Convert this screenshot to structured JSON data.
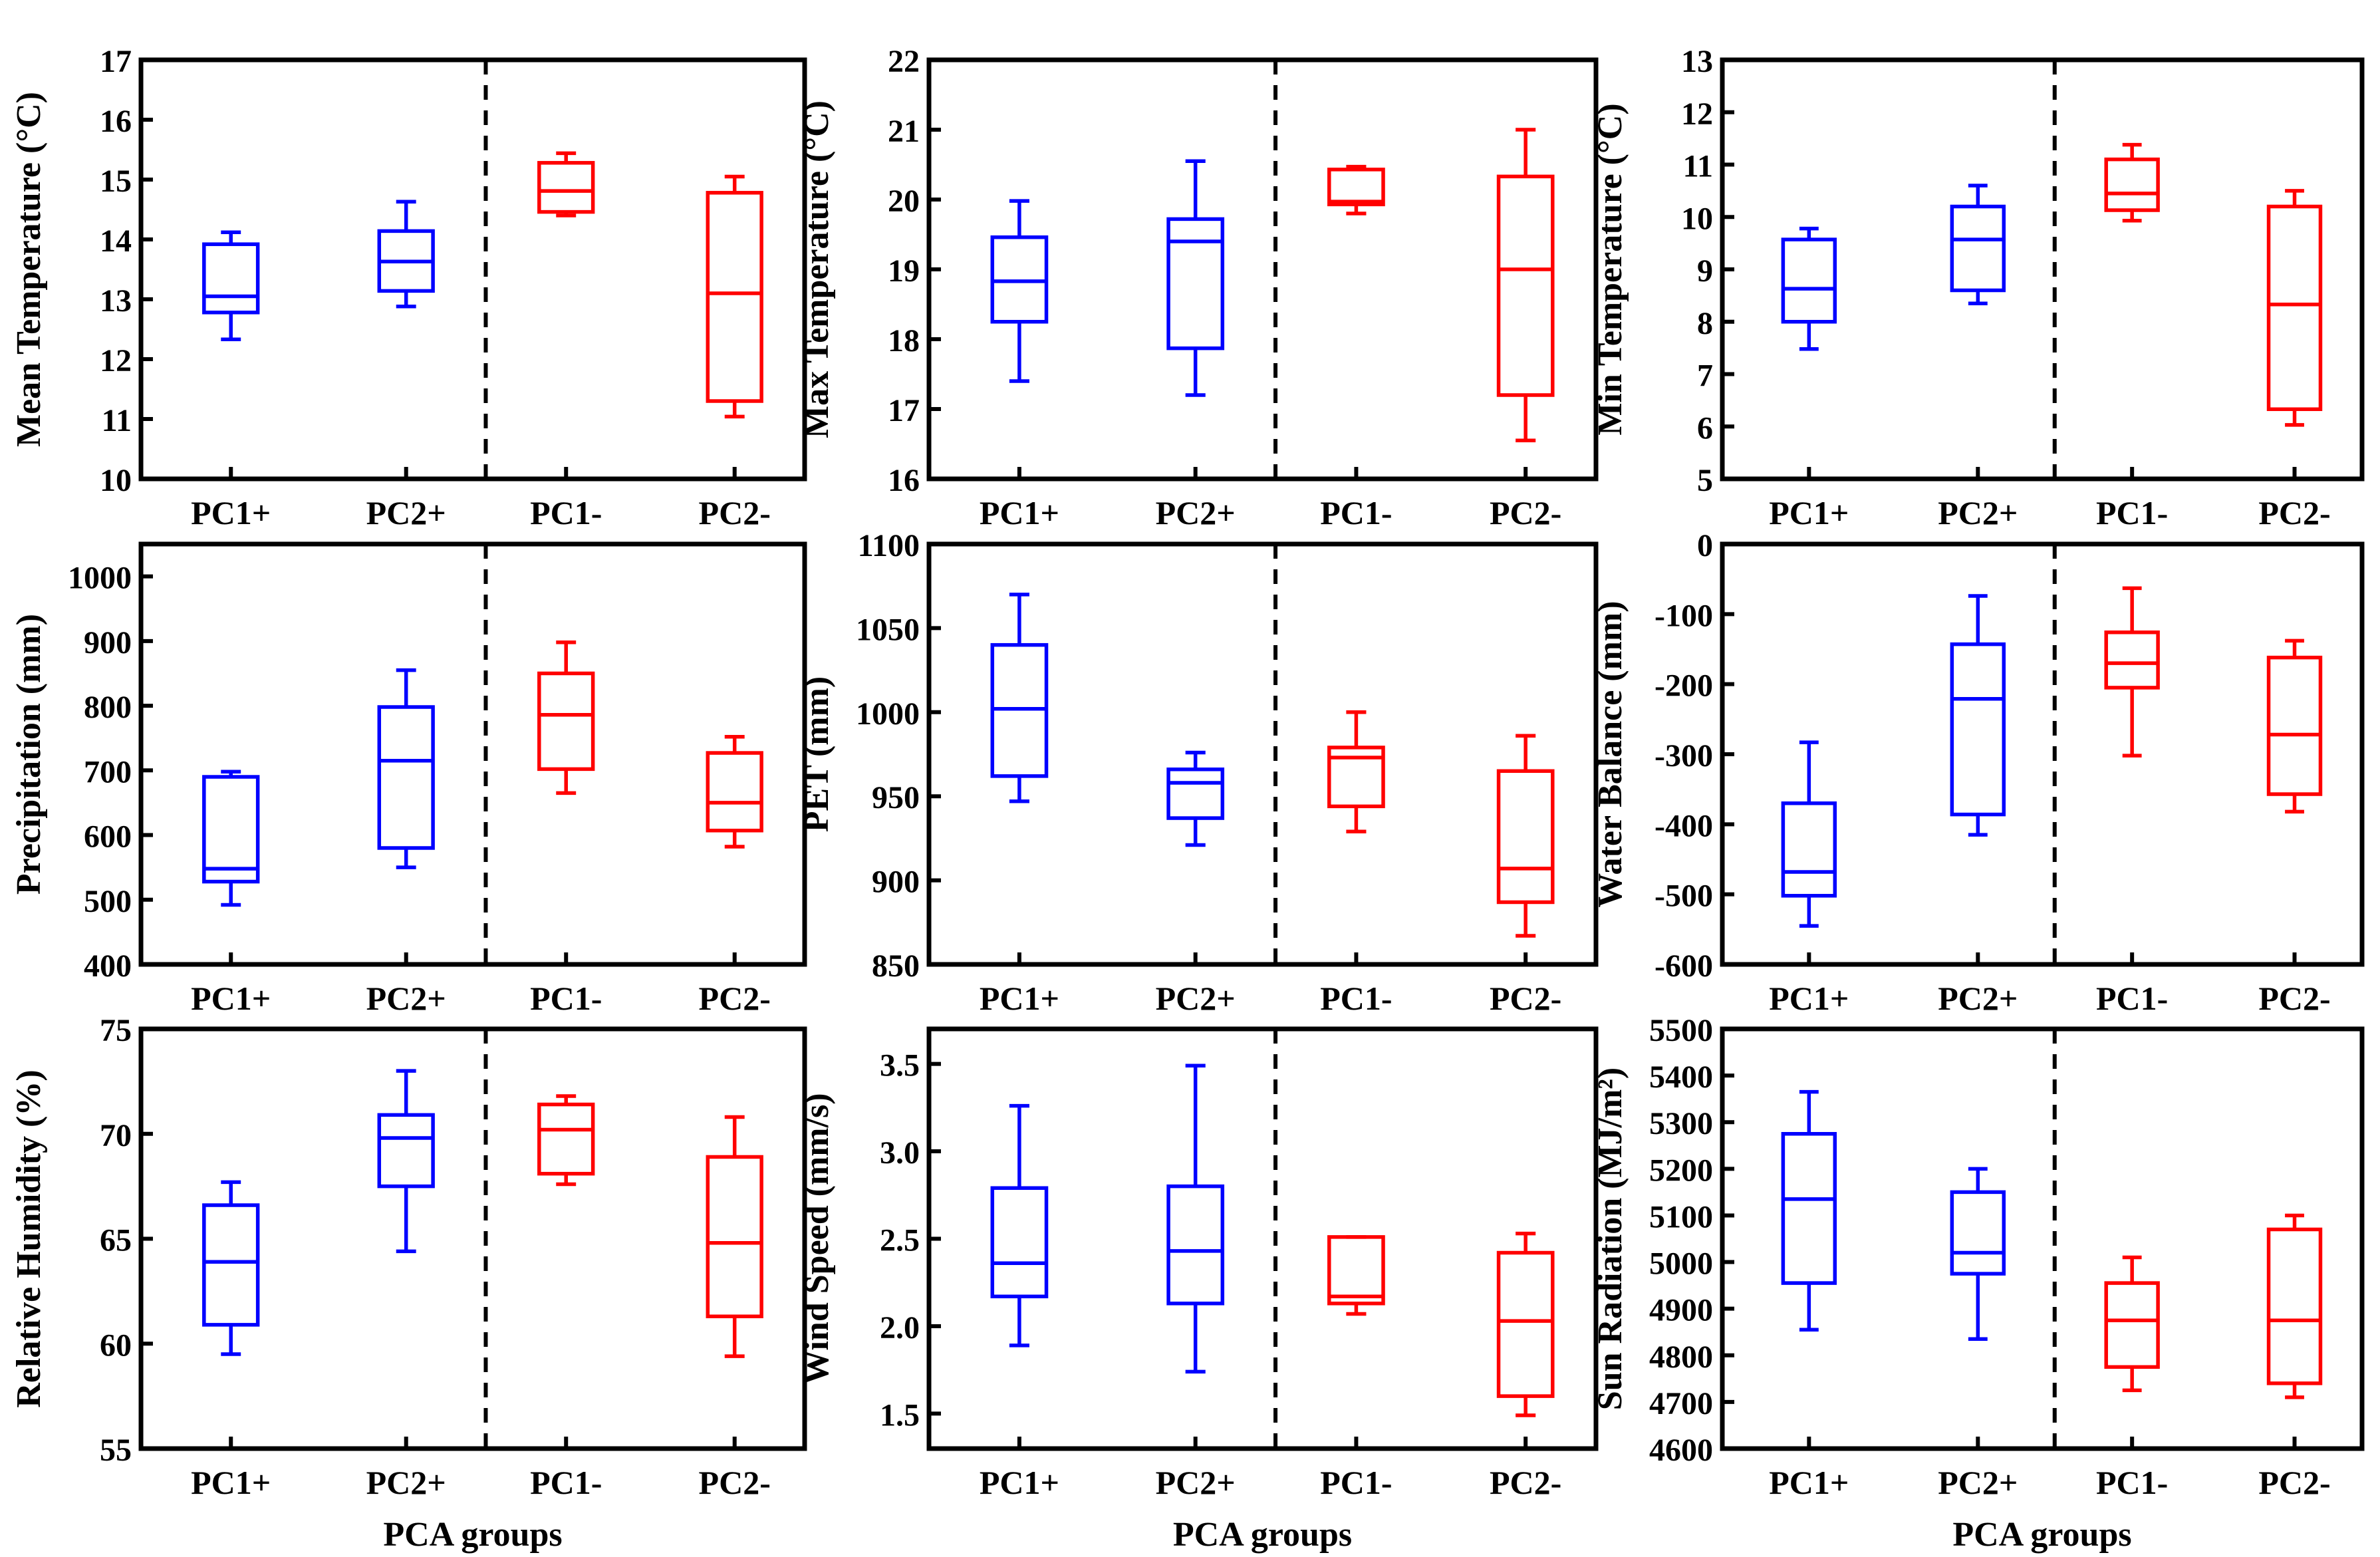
{
  "figure": {
    "colors": {
      "positive": "#0000ff",
      "negative": "#ff0000",
      "axis": "#000000"
    }
  },
  "chart_data": [
    {
      "type": "box",
      "ylabel": "Mean Temperature (°C)",
      "xlabel": "",
      "categories": [
        "PC1+",
        "PC2+",
        "PC1-",
        "PC2-"
      ],
      "ylim": [
        10,
        17
      ],
      "yticks": [
        10,
        11,
        12,
        13,
        14,
        15,
        16,
        17
      ],
      "series": [
        {
          "group": "PC1+",
          "min": 12.33,
          "q1": 12.78,
          "median": 13.05,
          "q3": 13.92,
          "max": 14.12
        },
        {
          "group": "PC2+",
          "min": 12.88,
          "q1": 13.14,
          "median": 13.63,
          "q3": 14.14,
          "max": 14.63
        },
        {
          "group": "PC1-",
          "min": 14.4,
          "q1": 14.46,
          "median": 14.81,
          "q3": 15.28,
          "max": 15.44
        },
        {
          "group": "PC2-",
          "min": 11.04,
          "q1": 11.3,
          "median": 13.1,
          "q3": 14.78,
          "max": 15.05
        }
      ]
    },
    {
      "type": "box",
      "ylabel": "Max Temperature (°C)",
      "xlabel": "",
      "categories": [
        "PC1+",
        "PC2+",
        "PC1-",
        "PC2-"
      ],
      "ylim": [
        16,
        22
      ],
      "yticks": [
        16,
        17,
        18,
        19,
        20,
        21,
        22
      ],
      "series": [
        {
          "group": "PC1+",
          "min": 17.4,
          "q1": 18.25,
          "median": 18.83,
          "q3": 19.46,
          "max": 19.98
        },
        {
          "group": "PC2+",
          "min": 17.2,
          "q1": 17.87,
          "median": 19.4,
          "q3": 19.72,
          "max": 20.55
        },
        {
          "group": "PC1-",
          "min": 19.8,
          "q1": 19.93,
          "median": 19.97,
          "q3": 20.43,
          "max": 20.47
        },
        {
          "group": "PC2-",
          "min": 16.55,
          "q1": 17.2,
          "median": 19.0,
          "q3": 20.33,
          "max": 21.0
        }
      ]
    },
    {
      "type": "box",
      "ylabel": "Min Temperature (°C)",
      "xlabel": "",
      "categories": [
        "PC1+",
        "PC2+",
        "PC1-",
        "PC2-"
      ],
      "ylim": [
        5,
        13
      ],
      "yticks": [
        5,
        6,
        7,
        8,
        9,
        10,
        11,
        12,
        13
      ],
      "series": [
        {
          "group": "PC1+",
          "min": 7.48,
          "q1": 8.0,
          "median": 8.63,
          "q3": 9.57,
          "max": 9.78
        },
        {
          "group": "PC2+",
          "min": 8.35,
          "q1": 8.6,
          "median": 9.57,
          "q3": 10.2,
          "max": 10.6
        },
        {
          "group": "PC1-",
          "min": 9.93,
          "q1": 10.13,
          "median": 10.45,
          "q3": 11.1,
          "max": 11.38
        },
        {
          "group": "PC2-",
          "min": 6.03,
          "q1": 6.33,
          "median": 8.33,
          "q3": 10.2,
          "max": 10.5
        }
      ]
    },
    {
      "type": "box",
      "ylabel": "Precipitation (mm)",
      "xlabel": "",
      "categories": [
        "PC1+",
        "PC2+",
        "PC1-",
        "PC2-"
      ],
      "ylim": [
        400,
        1050
      ],
      "yticks": [
        400,
        500,
        600,
        700,
        800,
        900,
        1000
      ],
      "series": [
        {
          "group": "PC1+",
          "min": 492,
          "q1": 528,
          "median": 548,
          "q3": 690,
          "max": 698
        },
        {
          "group": "PC2+",
          "min": 550,
          "q1": 580,
          "median": 715,
          "q3": 798,
          "max": 855
        },
        {
          "group": "PC1-",
          "min": 665,
          "q1": 702,
          "median": 786,
          "q3": 850,
          "max": 898
        },
        {
          "group": "PC2-",
          "min": 582,
          "q1": 607,
          "median": 650,
          "q3": 727,
          "max": 752
        }
      ]
    },
    {
      "type": "box",
      "ylabel": "PET (mm)",
      "xlabel": "",
      "categories": [
        "PC1+",
        "PC2+",
        "PC1-",
        "PC2-"
      ],
      "ylim": [
        850,
        1100
      ],
      "yticks": [
        850,
        900,
        950,
        1000,
        1050,
        1100
      ],
      "series": [
        {
          "group": "PC1+",
          "min": 947,
          "q1": 962,
          "median": 1002,
          "q3": 1040,
          "max": 1070
        },
        {
          "group": "PC2+",
          "min": 921,
          "q1": 937,
          "median": 958,
          "q3": 966,
          "max": 976
        },
        {
          "group": "PC1-",
          "min": 929,
          "q1": 944,
          "median": 973,
          "q3": 979,
          "max": 1000
        },
        {
          "group": "PC2-",
          "min": 867,
          "q1": 887,
          "median": 907,
          "q3": 965,
          "max": 986
        }
      ]
    },
    {
      "type": "box",
      "ylabel": "Water Balance (mm)",
      "xlabel": "",
      "categories": [
        "PC1+",
        "PC2+",
        "PC1-",
        "PC2-"
      ],
      "ylim": [
        -600,
        0
      ],
      "yticks": [
        -600,
        -500,
        -400,
        -300,
        -200,
        -100,
        0
      ],
      "series": [
        {
          "group": "PC1+",
          "min": -545,
          "q1": -502,
          "median": -468,
          "q3": -370,
          "max": -283
        },
        {
          "group": "PC2+",
          "min": -415,
          "q1": -386,
          "median": -221,
          "q3": -143,
          "max": -74
        },
        {
          "group": "PC1-",
          "min": -302,
          "q1": -205,
          "median": -170,
          "q3": -126,
          "max": -63
        },
        {
          "group": "PC2-",
          "min": -382,
          "q1": -357,
          "median": -272,
          "q3": -162,
          "max": -138
        }
      ]
    },
    {
      "type": "box",
      "ylabel": "Relative Humidity (%)",
      "xlabel": "PCA groups",
      "categories": [
        "PC1+",
        "PC2+",
        "PC1-",
        "PC2-"
      ],
      "ylim": [
        55,
        75
      ],
      "yticks": [
        55,
        60,
        65,
        70,
        75
      ],
      "series": [
        {
          "group": "PC1+",
          "min": 59.5,
          "q1": 60.9,
          "median": 63.9,
          "q3": 66.6,
          "max": 67.7
        },
        {
          "group": "PC2+",
          "min": 64.4,
          "q1": 67.5,
          "median": 69.8,
          "q3": 70.9,
          "max": 73.0
        },
        {
          "group": "PC1-",
          "min": 67.6,
          "q1": 68.1,
          "median": 70.2,
          "q3": 71.4,
          "max": 71.8
        },
        {
          "group": "PC2-",
          "min": 59.4,
          "q1": 61.3,
          "median": 64.8,
          "q3": 68.9,
          "max": 70.8
        }
      ]
    },
    {
      "type": "box",
      "ylabel": "Wind Speed (mm/s)",
      "xlabel": "PCA groups",
      "categories": [
        "PC1+",
        "PC2+",
        "PC1-",
        "PC2-"
      ],
      "ylim": [
        1.3,
        3.7
      ],
      "yticks": [
        1.5,
        2.0,
        2.5,
        3.0,
        3.5
      ],
      "series": [
        {
          "group": "PC1+",
          "min": 1.89,
          "q1": 2.17,
          "median": 2.36,
          "q3": 2.79,
          "max": 3.26
        },
        {
          "group": "PC2+",
          "min": 1.74,
          "q1": 2.13,
          "median": 2.43,
          "q3": 2.8,
          "max": 3.49
        },
        {
          "group": "PC1-",
          "min": 2.07,
          "q1": 2.13,
          "median": 2.17,
          "q3": 2.51,
          "max": 2.51
        },
        {
          "group": "PC2-",
          "min": 1.49,
          "q1": 1.6,
          "median": 2.03,
          "q3": 2.42,
          "max": 2.53
        }
      ]
    },
    {
      "type": "box",
      "ylabel": "Sun Radiation (MJ/m²)",
      "xlabel": "PCA groups",
      "categories": [
        "PC1+",
        "PC2+",
        "PC1-",
        "PC2-"
      ],
      "ylim": [
        4600,
        5500
      ],
      "yticks": [
        4600,
        4700,
        4800,
        4900,
        5000,
        5100,
        5200,
        5300,
        5400,
        5500
      ],
      "series": [
        {
          "group": "PC1+",
          "min": 4855,
          "q1": 4955,
          "median": 5135,
          "q3": 5275,
          "max": 5365
        },
        {
          "group": "PC2+",
          "min": 4835,
          "q1": 4975,
          "median": 5020,
          "q3": 5150,
          "max": 5200
        },
        {
          "group": "PC1-",
          "min": 4725,
          "q1": 4775,
          "median": 4875,
          "q3": 4955,
          "max": 5010
        },
        {
          "group": "PC2-",
          "min": 4710,
          "q1": 4740,
          "median": 4875,
          "q3": 5070,
          "max": 5100
        }
      ]
    }
  ]
}
